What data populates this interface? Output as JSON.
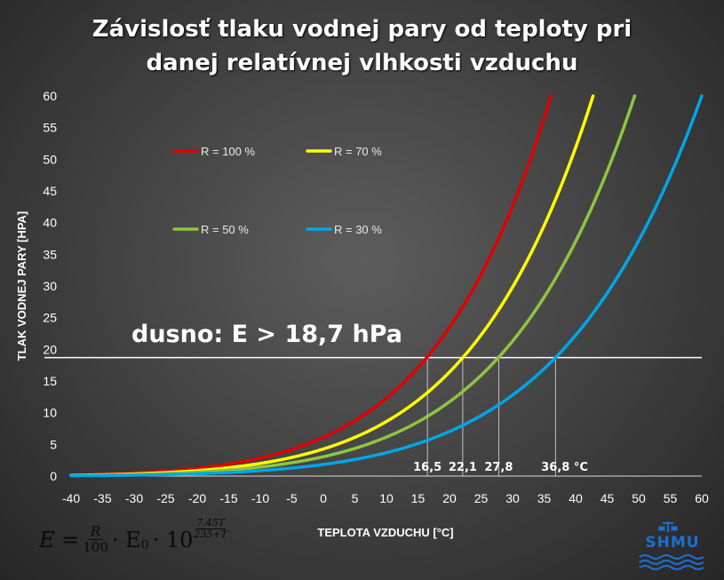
{
  "chart_data": {
    "type": "line",
    "title_line1": "Závislosť tlaku vodnej pary od teploty pri",
    "title_line2": "danej relatívnej vlhkosti vzduchu",
    "xlabel": "TEPLOTA VZDUCHU [°C]",
    "ylabel": "TLAK VODNEJ PARY [HPA]",
    "xlim": [
      -40,
      60
    ],
    "ylim": [
      0,
      60
    ],
    "xticks": [
      -40,
      -35,
      -30,
      -25,
      -20,
      -15,
      -10,
      -5,
      0,
      5,
      10,
      15,
      20,
      25,
      30,
      35,
      40,
      45,
      50,
      55,
      60
    ],
    "yticks": [
      0,
      5,
      10,
      15,
      20,
      25,
      30,
      35,
      40,
      45,
      50,
      55,
      60
    ],
    "grid": false,
    "legend_placement": "top-left",
    "formula": {
      "E0_hPa": 6.11,
      "coef_a": 7.45,
      "coef_b": 235
    },
    "series": [
      {
        "name": "R = 100 %",
        "R": 100,
        "color": "#e00000"
      },
      {
        "name": "R = 70 %",
        "R": 70,
        "color": "#ffff00"
      },
      {
        "name": "R = 50 %",
        "R": 50,
        "color": "#8dc63f"
      },
      {
        "name": "R = 30 %",
        "R": 30,
        "color": "#00a6e6"
      }
    ],
    "threshold": {
      "label": "dusno: E > 18,7 hPa",
      "value": 18.7
    },
    "markers": [
      {
        "label": "16,5",
        "x": 16.5
      },
      {
        "label": "22,1",
        "x": 22.1
      },
      {
        "label": "27,8",
        "x": 27.8
      },
      {
        "label": "36,8 °C",
        "x": 36.8
      }
    ]
  },
  "formula_text": {
    "lhs": "E = ",
    "r_num": "R",
    "r_den": "100",
    "mid": "· E",
    "sub0": "0",
    "times10": "· 10",
    "exp_num": "7.45T",
    "exp_den": "235+T"
  },
  "logo": {
    "text": "SHMU"
  }
}
